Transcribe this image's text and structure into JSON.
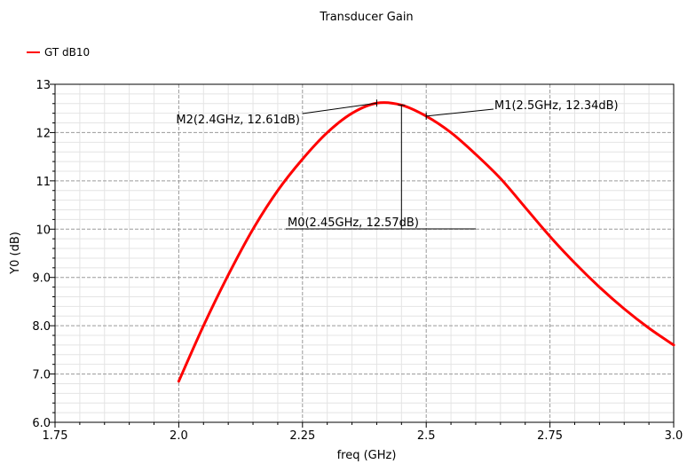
{
  "chart_data": {
    "type": "line",
    "title": "Transducer Gain",
    "xlabel": "freq (GHz)",
    "ylabel": "Y0 (dB)",
    "xlim": [
      1.75,
      3.0
    ],
    "ylim": [
      6.0,
      13.0
    ],
    "x_ticks": [
      "1.75",
      "2.0",
      "2.25",
      "2.5",
      "2.75",
      "3.0"
    ],
    "y_ticks": [
      "6.0",
      "7.0",
      "8.0",
      "9.0",
      "10",
      "11",
      "12",
      "13"
    ],
    "grid": true,
    "legend_position": "top-left",
    "series": [
      {
        "name": "GT dB10",
        "color": "#ff0000",
        "x": [
          2.0,
          2.05,
          2.1,
          2.15,
          2.2,
          2.25,
          2.3,
          2.35,
          2.4,
          2.45,
          2.5,
          2.55,
          2.6,
          2.65,
          2.7,
          2.75,
          2.8,
          2.85,
          2.9,
          2.95,
          3.0
        ],
        "y": [
          6.85,
          8.0,
          9.05,
          10.0,
          10.8,
          11.45,
          12.0,
          12.4,
          12.61,
          12.57,
          12.34,
          12.0,
          11.55,
          11.05,
          10.45,
          9.85,
          9.3,
          8.8,
          8.35,
          7.95,
          7.6
        ]
      }
    ],
    "markers": [
      {
        "label": "M2(2.4GHz, 12.61dB)",
        "x": 2.4,
        "y": 12.61
      },
      {
        "label": "M1(2.5GHz, 12.34dB)",
        "x": 2.5,
        "y": 12.34
      },
      {
        "label": "M0(2.45GHz, 12.57dB)",
        "x": 2.45,
        "y": 12.57
      }
    ]
  }
}
